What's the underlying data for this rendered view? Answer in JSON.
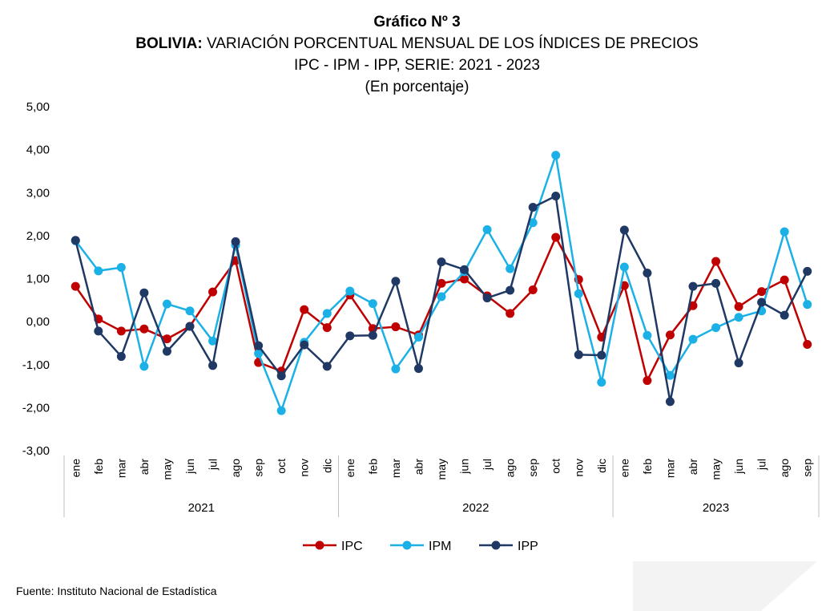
{
  "header": {
    "title": "Gráfico Nº 3",
    "subtitle_bold": "BOLIVIA:",
    "subtitle_rest": " VARIACIÓN PORCENTUAL MENSUAL DE LOS ÍNDICES DE PRECIOS",
    "subtitle_line2": "IPC - IPM - IPP, SERIE: 2021 - 2023",
    "subtitle_line3": "(En porcentaje)"
  },
  "footer": {
    "source": "Fuente: Instituto Nacional de Estadística"
  },
  "chart_data": {
    "type": "line",
    "categories": [
      "ene",
      "feb",
      "mar",
      "abr",
      "may",
      "jun",
      "jul",
      "ago",
      "sep",
      "oct",
      "nov",
      "dic",
      "ene",
      "feb",
      "mar",
      "abr",
      "may",
      "jun",
      "jul",
      "ago",
      "sep",
      "oct",
      "nov",
      "dic",
      "ene",
      "feb",
      "mar",
      "abr",
      "may",
      "jun",
      "jul",
      "ago",
      "sep"
    ],
    "groups": [
      {
        "label": "2021",
        "count": 12
      },
      {
        "label": "2022",
        "count": 12
      },
      {
        "label": "2023",
        "count": 9
      }
    ],
    "ylim": [
      -3,
      5
    ],
    "yticks": [
      "5,00",
      "4,00",
      "3,00",
      "2,00",
      "1,00",
      "0,00",
      "-1,00",
      "-2,00",
      "-3,00"
    ],
    "legend_position": "bottom",
    "series": [
      {
        "name": "IPC",
        "color": "#C00000",
        "values": [
          0.82,
          0.06,
          -0.22,
          -0.17,
          -0.4,
          -0.11,
          0.69,
          1.42,
          -0.95,
          -1.15,
          0.28,
          -0.14,
          0.62,
          -0.16,
          -0.12,
          -0.31,
          0.89,
          0.99,
          0.6,
          0.19,
          0.74,
          1.96,
          0.98,
          -0.36,
          0.84,
          -1.37,
          -0.31,
          0.37,
          1.4,
          0.35,
          0.7,
          0.97,
          -0.53
        ]
      },
      {
        "name": "IPM",
        "color": "#1CB1E6",
        "values": [
          1.88,
          1.18,
          1.26,
          -1.04,
          0.41,
          0.25,
          -0.45,
          1.78,
          -0.74,
          -2.07,
          -0.48,
          0.19,
          0.71,
          0.42,
          -1.1,
          -0.36,
          0.58,
          1.16,
          2.14,
          1.23,
          2.3,
          3.87,
          0.65,
          -1.41,
          1.27,
          -0.32,
          -1.25,
          -0.41,
          -0.14,
          0.1,
          0.25,
          2.09,
          0.4
        ]
      },
      {
        "name": "IPP",
        "color": "#1F3864",
        "values": [
          1.89,
          -0.22,
          -0.81,
          0.67,
          -0.69,
          -0.11,
          -1.02,
          1.86,
          -0.56,
          -1.26,
          -0.54,
          -1.04,
          -0.33,
          -0.32,
          0.94,
          -1.09,
          1.39,
          1.21,
          0.55,
          0.73,
          2.66,
          2.92,
          -0.77,
          -0.78,
          2.13,
          1.13,
          -1.86,
          0.82,
          0.89,
          -0.96,
          0.45,
          0.15,
          1.17
        ]
      }
    ]
  }
}
